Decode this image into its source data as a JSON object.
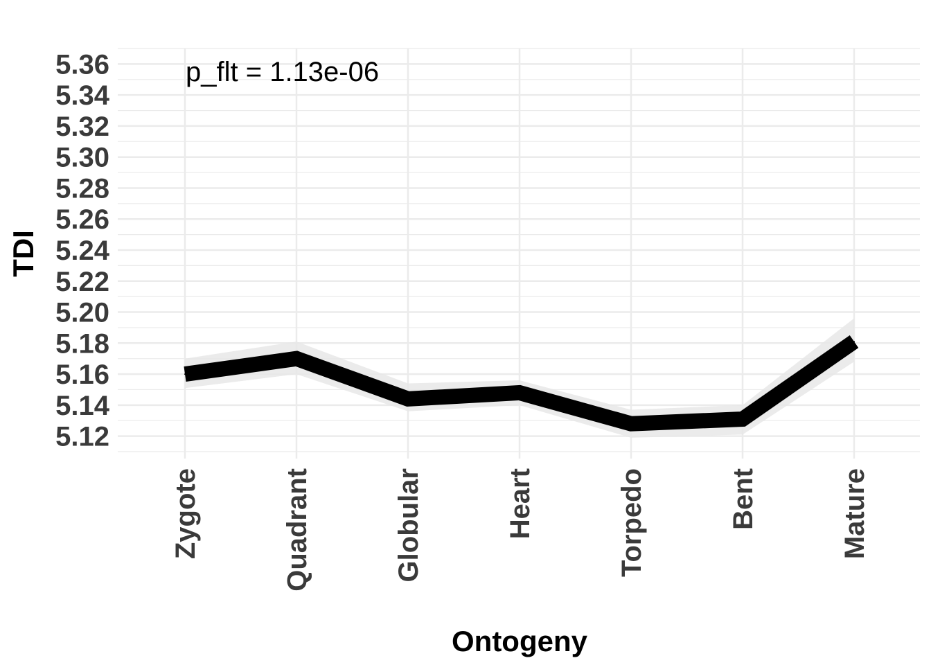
{
  "chart_data": {
    "type": "line",
    "title": "",
    "xlabel": "Ontogeny",
    "ylabel": "TDI",
    "categories": [
      "Zygote",
      "Quadrant",
      "Globular",
      "Heart",
      "Torpedo",
      "Bent",
      "Mature"
    ],
    "series": [
      {
        "values": [
          5.16,
          5.17,
          5.144,
          5.148,
          5.128,
          5.131,
          5.181
        ],
        "ci_lower": [
          5.151,
          5.16,
          5.136,
          5.14,
          5.119,
          5.121,
          5.168
        ],
        "ci_upper": [
          5.17,
          5.181,
          5.154,
          5.156,
          5.137,
          5.14,
          5.196
        ],
        "color": "#000000",
        "ribbon_color": "#e8e8e8"
      }
    ],
    "ylim": [
      5.11,
      5.37
    ],
    "yticks": [
      "5.12",
      "5.14",
      "5.16",
      "5.18",
      "5.20",
      "5.22",
      "5.24",
      "5.26",
      "5.28",
      "5.30",
      "5.32",
      "5.34",
      "5.36"
    ],
    "grid": true,
    "legend": "none",
    "annotations": [
      {
        "text": "p_flt = 1.13e-06"
      }
    ],
    "colors": {
      "background": "#ffffff",
      "grid": "#ebebeb",
      "tick_text": "#3a3a3a",
      "title_text": "#000000"
    }
  }
}
